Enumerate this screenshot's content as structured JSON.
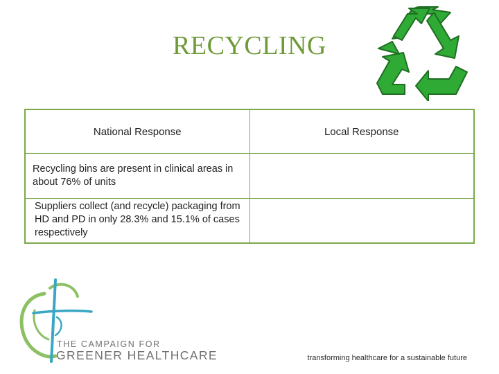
{
  "slide": {
    "title": "RECYCLING"
  },
  "table": {
    "headers": [
      "National Response",
      "Local Response"
    ],
    "rows": [
      {
        "national": "Recycling bins are present in clinical areas in about 76% of units",
        "local": ""
      },
      {
        "national": "Suppliers collect (and recycle) packaging from HD and PD in only 28.3% and 15.1% of cases respectively",
        "local": ""
      }
    ]
  },
  "campaign_logo": {
    "line1": "THE CAMPAIGN FOR",
    "line2": "GREENER HEALTHCARE",
    "colors": {
      "green": "#8cc063",
      "blue": "#39a6c4",
      "text": "#707070"
    }
  },
  "footer": {
    "tagline": "transforming healthcare for a sustainable future"
  },
  "icons": {
    "recycle": "recycle-icon",
    "campaign": "campaign-logo-icon"
  },
  "colors": {
    "title": "#6f9a38",
    "table_border": "#79a94a",
    "recycle_green": "#2faa35"
  }
}
